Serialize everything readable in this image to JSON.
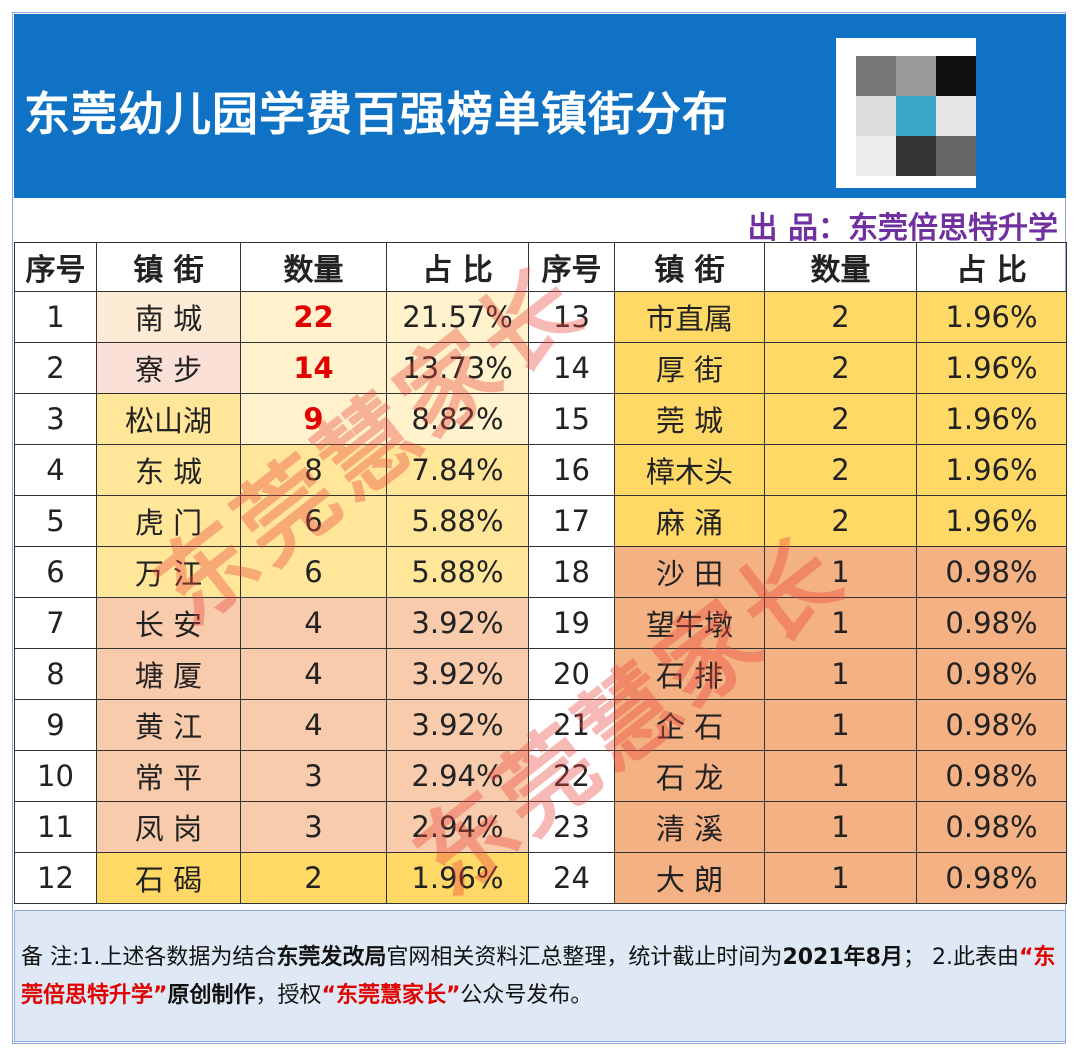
{
  "header": {
    "title": "东莞幼儿园学费百强榜单镇街分布",
    "producer": "出 品：东莞倍思特升学"
  },
  "table": {
    "columns": [
      "序号",
      "镇 街",
      "数量",
      "占 比",
      "序号",
      "镇 街",
      "数量",
      "占 比"
    ],
    "rows": [
      [
        1,
        "南 城",
        22,
        "21.57%",
        13,
        "市直属",
        2,
        "1.96%"
      ],
      [
        2,
        "寮 步",
        14,
        "13.73%",
        14,
        "厚 街",
        2,
        "1.96%"
      ],
      [
        3,
        "松山湖",
        9,
        "8.82%",
        15,
        "莞 城",
        2,
        "1.96%"
      ],
      [
        4,
        "东 城",
        8,
        "7.84%",
        16,
        "樟木头",
        2,
        "1.96%"
      ],
      [
        5,
        "虎 门",
        6,
        "5.88%",
        17,
        "麻 涌",
        2,
        "1.96%"
      ],
      [
        6,
        "万 江",
        6,
        "5.88%",
        18,
        "沙 田",
        1,
        "0.98%"
      ],
      [
        7,
        "长 安",
        4,
        "3.92%",
        19,
        "望牛墩",
        1,
        "0.98%"
      ],
      [
        8,
        "塘 厦",
        4,
        "3.92%",
        20,
        "石 排",
        1,
        "0.98%"
      ],
      [
        9,
        "黄 江",
        4,
        "3.92%",
        21,
        "企 石",
        1,
        "0.98%"
      ],
      [
        10,
        "常 平",
        3,
        "2.94%",
        22,
        "石 龙",
        1,
        "0.98%"
      ],
      [
        11,
        "凤 岗",
        3,
        "2.94%",
        23,
        "清 溪",
        1,
        "0.98%"
      ],
      [
        12,
        "石 碣",
        2,
        "1.96%",
        24,
        "大 朗",
        1,
        "0.98%"
      ]
    ]
  },
  "note": [
    "备 注:1.上述各数据为结合",
    "东莞发改局",
    "官网相关资料汇总整理，统计截止时间为",
    "2021年8月",
    "； 2.此表由",
    "“东莞倍思特升学”",
    "原创制作",
    "，授权",
    "“东莞慧家长”",
    "公众号发布。"
  ],
  "watermarks": [
    "东莞慧家长",
    "东莞慧家长"
  ]
}
